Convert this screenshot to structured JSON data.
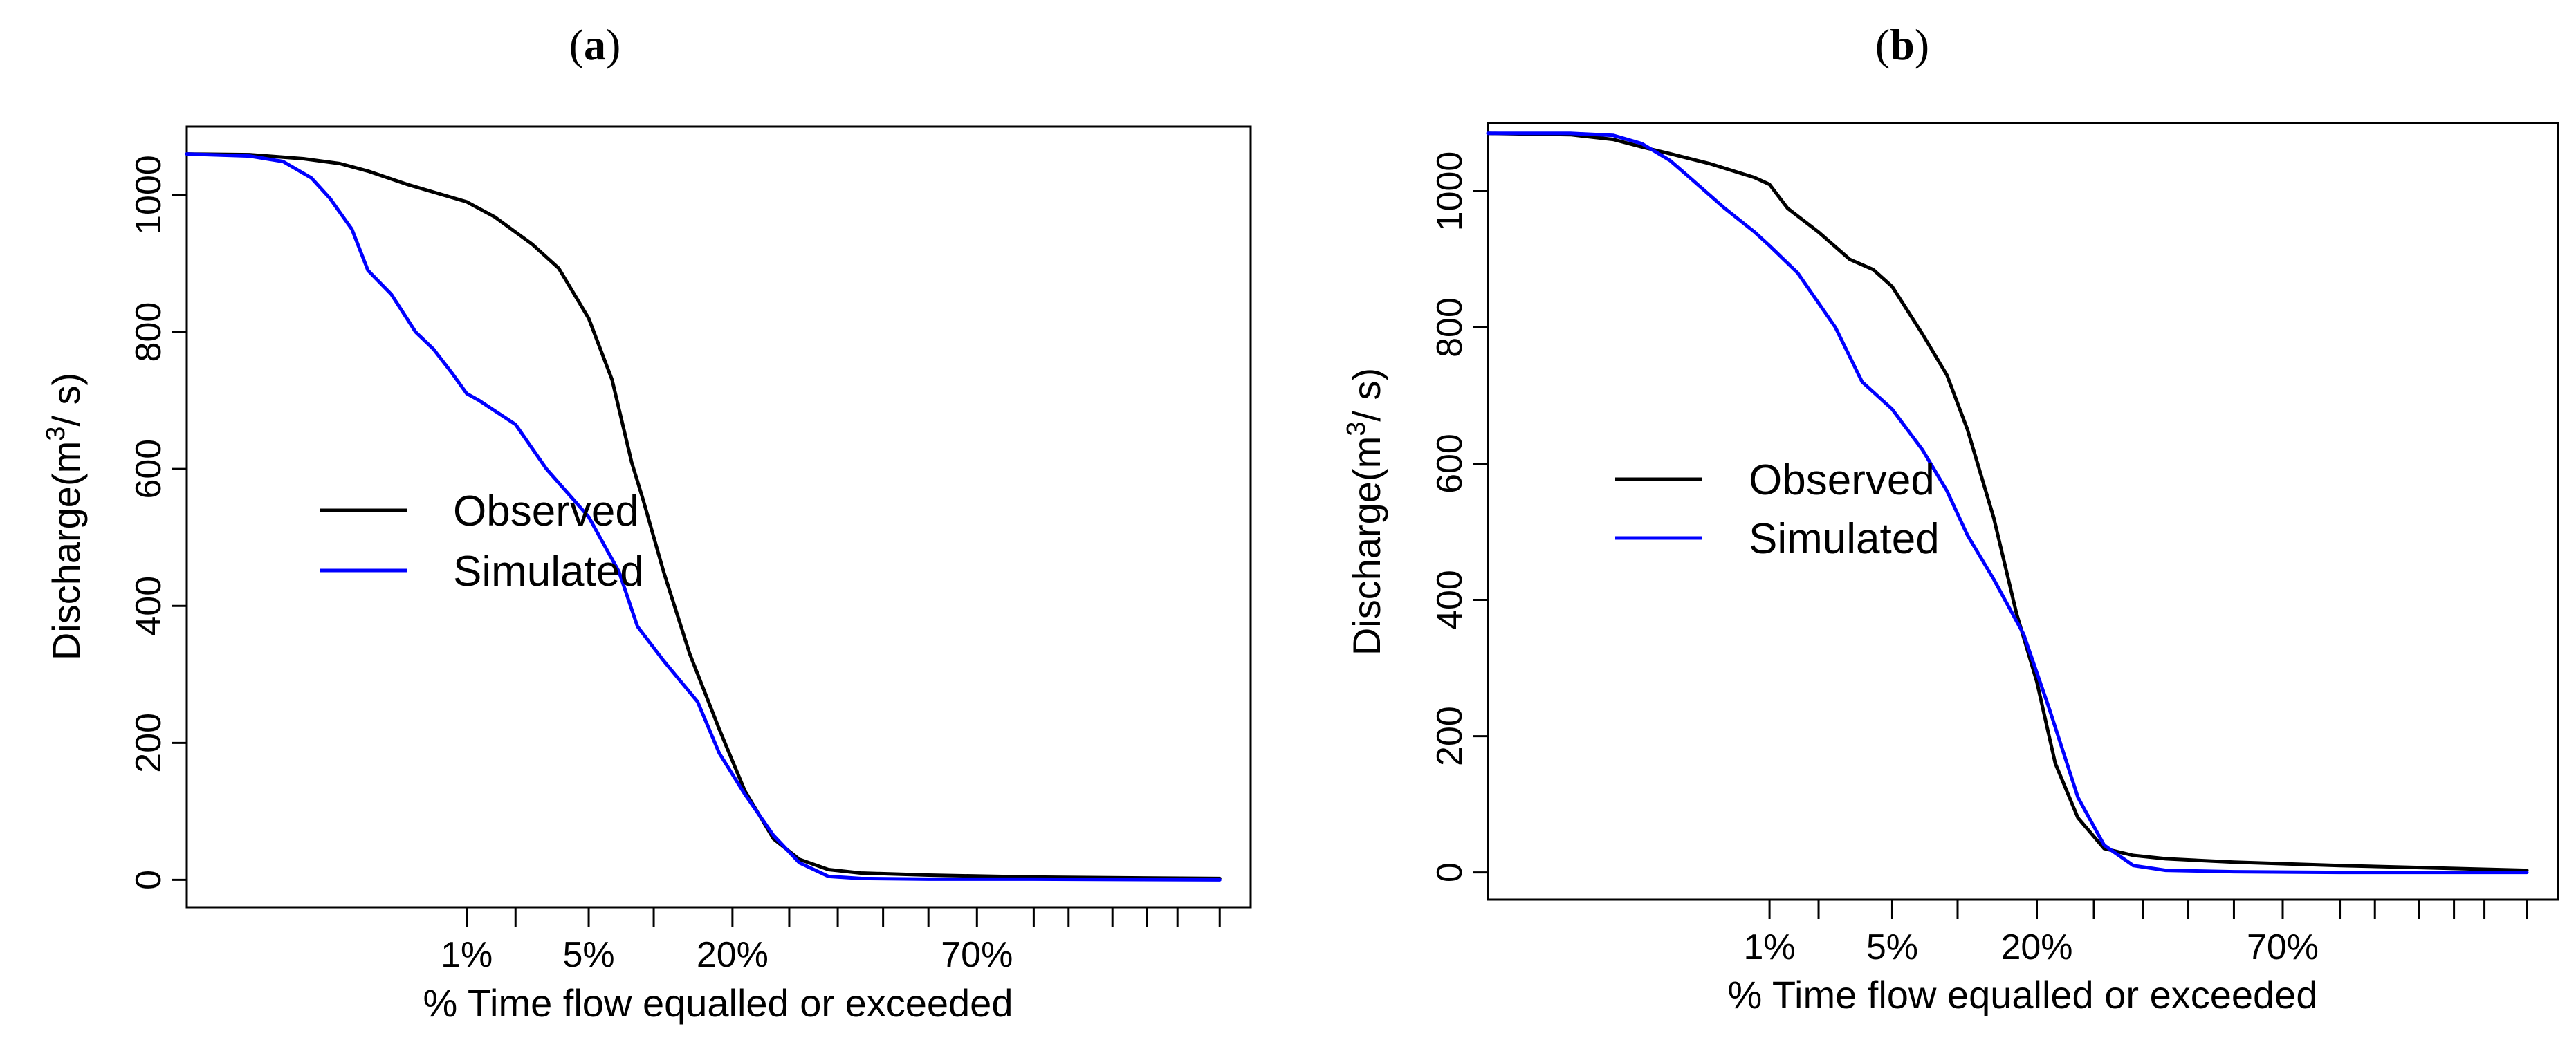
{
  "chart_data": [
    {
      "type": "line",
      "panel_label": "a",
      "title": "(a)",
      "xlabel": "% Time flow equalled or exceeded",
      "ylabel": "Discharge(m3/s)",
      "ylabel_parts": {
        "prefix": "Discharge(m",
        "superscript": "3",
        "suffix": "/ s)"
      },
      "x_scale": "normal-probability",
      "xlim": [
        0.005,
        98
      ],
      "ylim": [
        -40,
        1100
      ],
      "x_ticks": [
        1,
        5,
        20,
        70
      ],
      "x_tick_labels": [
        "1%",
        "5%",
        "20%",
        "70%"
      ],
      "x_minor_ticks": [
        2,
        10,
        30,
        40,
        50,
        60,
        80,
        85,
        90,
        93,
        95,
        97
      ],
      "y_ticks": [
        0,
        200,
        400,
        600,
        800,
        1000
      ],
      "y_tick_labels": [
        "0",
        "200",
        "400",
        "600",
        "800",
        "1000"
      ],
      "grid": false,
      "legend_position": "center-left",
      "series": [
        {
          "name": "Observed",
          "color": "#000000",
          "x": [
            0.005,
            0.02,
            0.06,
            0.12,
            0.2,
            0.4,
            0.7,
            1.0,
            1.5,
            2.5,
            3.5,
            5.0,
            6.5,
            8.0,
            9.0,
            11,
            14,
            18,
            22,
            27,
            32,
            38,
            45,
            60,
            80,
            97
          ],
          "y": [
            1060,
            1059,
            1053,
            1046,
            1035,
            1015,
            1000,
            990,
            968,
            928,
            893,
            820,
            730,
            610,
            555,
            450,
            330,
            220,
            130,
            60,
            30,
            15,
            10,
            7,
            4,
            2
          ]
        },
        {
          "name": "Simulated",
          "color": "#0000ff",
          "x": [
            0.005,
            0.02,
            0.04,
            0.07,
            0.1,
            0.15,
            0.2,
            0.3,
            0.45,
            0.6,
            0.8,
            1.0,
            1.2,
            2.0,
            3.0,
            5.0,
            7.0,
            8.5,
            11,
            15,
            18,
            22,
            27,
            32,
            38,
            45,
            60,
            80,
            97
          ],
          "y": [
            1060,
            1057,
            1049,
            1025,
            995,
            950,
            890,
            855,
            800,
            775,
            740,
            710,
            700,
            665,
            600,
            530,
            450,
            370,
            320,
            260,
            185,
            125,
            65,
            25,
            5,
            2,
            1,
            1,
            0
          ]
        }
      ]
    },
    {
      "type": "line",
      "panel_label": "b",
      "title": "(b)",
      "xlabel": "% Time flow equalled or exceeded",
      "ylabel": "Discharge(m3/s)",
      "ylabel_parts": {
        "prefix": "Discharge(m",
        "superscript": "3",
        "suffix": "/ s)"
      },
      "x_scale": "normal-probability",
      "xlim": [
        0.005,
        98
      ],
      "ylim": [
        -40,
        1100
      ],
      "x_ticks": [
        1,
        5,
        20,
        70
      ],
      "x_tick_labels": [
        "1%",
        "5%",
        "20%",
        "70%"
      ],
      "x_minor_ticks": [
        2,
        10,
        30,
        40,
        50,
        60,
        80,
        85,
        90,
        93,
        95,
        97
      ],
      "y_ticks": [
        0,
        200,
        400,
        600,
        800,
        1000
      ],
      "y_tick_labels": [
        "0",
        "200",
        "400",
        "600",
        "800",
        "1000"
      ],
      "grid": false,
      "legend_position": "center-left",
      "series": [
        {
          "name": "Observed",
          "color": "#000000",
          "x": [
            0.005,
            0.03,
            0.07,
            0.12,
            0.2,
            0.4,
            0.8,
            1.0,
            1.3,
            2.0,
            3.0,
            4.0,
            5.0,
            7.0,
            9.0,
            11,
            14,
            17,
            20,
            23,
            27,
            32,
            38,
            45,
            60,
            80,
            97
          ],
          "y": [
            1085,
            1083,
            1076,
            1065,
            1055,
            1040,
            1020,
            1010,
            975,
            940,
            900,
            885,
            860,
            790,
            730,
            650,
            520,
            380,
            280,
            160,
            80,
            35,
            25,
            20,
            15,
            10,
            3
          ]
        },
        {
          "name": "Simulated",
          "color": "#0000ff",
          "x": [
            0.005,
            0.03,
            0.07,
            0.12,
            0.2,
            0.3,
            0.5,
            0.8,
            1.0,
            1.5,
            2.5,
            3.5,
            5.0,
            7.0,
            9.0,
            11,
            14,
            18,
            22,
            27,
            32,
            38,
            45,
            60,
            80,
            97
          ],
          "y": [
            1085,
            1085,
            1082,
            1070,
            1045,
            1015,
            975,
            940,
            920,
            880,
            800,
            720,
            680,
            620,
            560,
            495,
            430,
            350,
            240,
            110,
            40,
            10,
            3,
            1,
            0,
            0
          ]
        }
      ]
    }
  ]
}
